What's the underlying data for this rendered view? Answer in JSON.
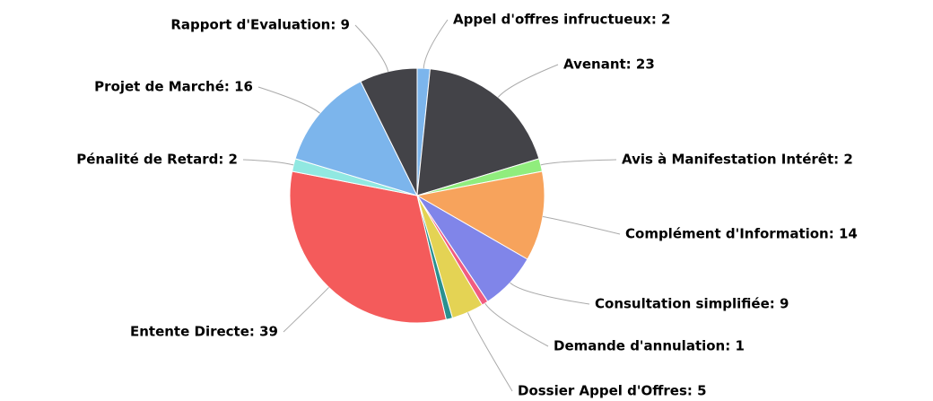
{
  "chart_data": {
    "type": "pie",
    "values": [
      2,
      23,
      2,
      14,
      9,
      1,
      5,
      1,
      39,
      2,
      16,
      9
    ],
    "value_labels": [
      "Appel d'offres infructueux: 2",
      "Avenant: 23",
      "Avis à Manifestation Intérêt: 2",
      "Complément d'Information: 14",
      "Consultation simplifiée: 9",
      "Demande d'annulation: 1",
      "Dossier Appel d'Offres: 5",
      null,
      "Entente Directe: 39",
      "Pénalité de Retard: 2",
      "Projet de Marché: 16",
      "Rapport d'Evaluation: 9"
    ],
    "colors": [
      "#7cb5ec",
      "#434348",
      "#90ed7d",
      "#f7a35c",
      "#8085e9",
      "#f15c80",
      "#e4d354",
      "#2b908f",
      "#f45b5b",
      "#91e8e1",
      "#7cb5ec",
      "#434348"
    ]
  }
}
